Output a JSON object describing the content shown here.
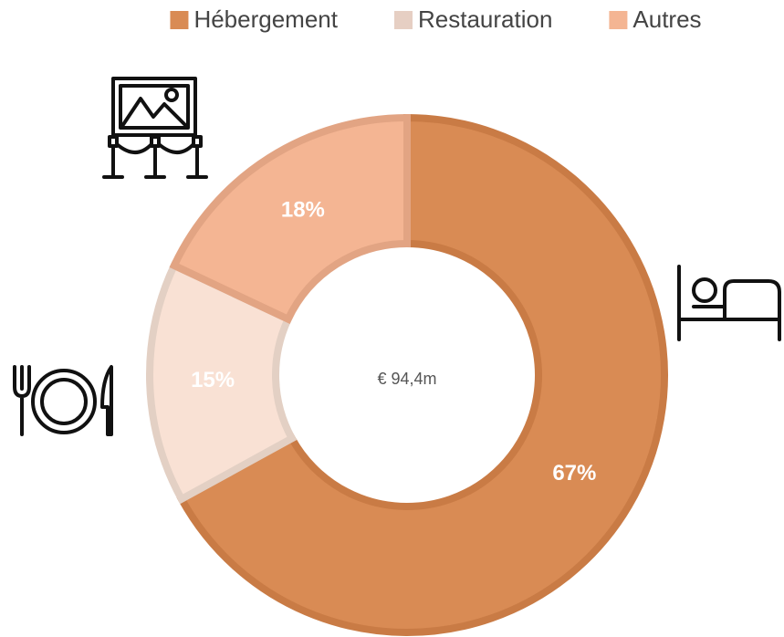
{
  "chart_data": {
    "type": "donut",
    "categories": [
      "Hébergement",
      "Restauration",
      "Autres"
    ],
    "values": [
      67,
      15,
      18
    ],
    "value_labels": [
      "67%",
      "15%",
      "18%"
    ],
    "colors": [
      "#d98b54",
      "#f9e1d4",
      "#f4b593"
    ],
    "edge_colors": [
      "#c97b45",
      "#e3d0c4",
      "#e2a483"
    ],
    "center_label": "€ 94,4m",
    "legend": "top"
  }
}
